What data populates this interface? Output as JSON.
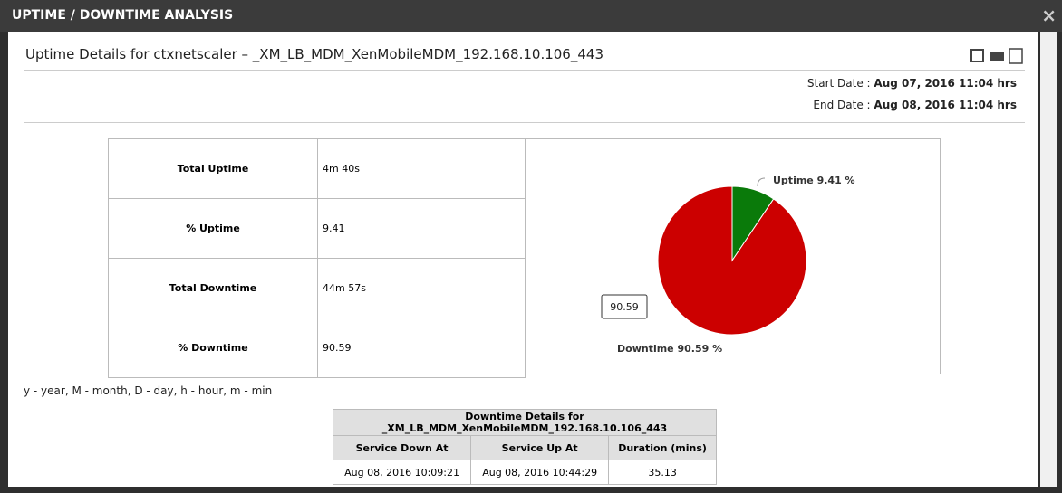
{
  "window": {
    "title": "UPTIME / DOWNTIME ANALYSIS",
    "close": "×"
  },
  "header": {
    "title": "Uptime Details for ctxnetscaler  –  _XM_LB_MDM_XenMobileMDM_192.168.10.106_443",
    "start_label": "Start Date :",
    "start_value": "Aug 07, 2016 11:04 hrs",
    "end_label": "End Date :",
    "end_value": "Aug 08, 2016 11:04 hrs"
  },
  "summary": {
    "rows": [
      [
        "Total Uptime",
        "4m 40s"
      ],
      [
        "% Uptime",
        "9.41"
      ],
      [
        "Total Downtime",
        "44m 57s"
      ],
      [
        "% Downtime",
        "90.59"
      ]
    ]
  },
  "chart_data": {
    "type": "pie",
    "categories": [
      "Uptime",
      "Downtime"
    ],
    "values": [
      9.41,
      90.59
    ],
    "value_labels": [
      "Uptime 9.41 %",
      "Downtime 90.59 %"
    ],
    "colors": [
      "#0a7a0a",
      "#cc0000"
    ],
    "tooltip": "90.59"
  },
  "legend_note": "y - year, M - month, D - day, h - hour, m - min",
  "downtime": {
    "title": "Downtime Details for _XM_LB_MDM_XenMobileMDM_192.168.10.106_443",
    "columns": [
      "Service Down At",
      "Service Up At",
      "Duration (mins)"
    ],
    "rows": [
      [
        "Aug 08, 2016 10:09:21",
        "Aug 08, 2016 10:44:29",
        "35.13"
      ]
    ]
  }
}
